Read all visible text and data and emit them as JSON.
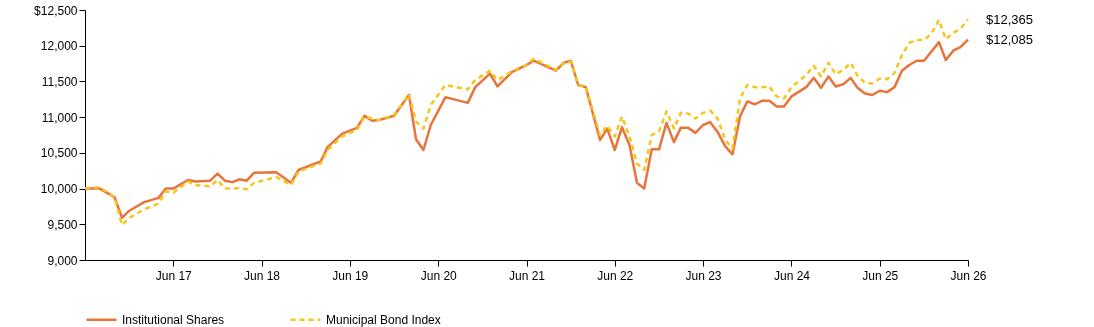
{
  "chart_data": {
    "type": "line",
    "x": [
      "2016-06",
      "2016-08",
      "2016-10",
      "2016-11",
      "2016-12",
      "2017-02",
      "2017-04",
      "2017-05",
      "2017-06",
      "2017-08",
      "2017-09",
      "2017-11",
      "2017-12",
      "2018-01",
      "2018-02",
      "2018-03",
      "2018-04",
      "2018-05",
      "2018-08",
      "2018-10",
      "2018-11",
      "2019-02",
      "2019-03",
      "2019-05",
      "2019-07",
      "2019-08",
      "2019-09",
      "2019-10",
      "2019-12",
      "2020-02",
      "2020-03",
      "2020-04",
      "2020-05",
      "2020-07",
      "2020-10",
      "2020-11",
      "2021-01",
      "2021-02",
      "2021-04",
      "2021-06",
      "2021-07",
      "2021-10",
      "2021-11",
      "2021-12",
      "2022-01",
      "2022-02",
      "2022-04",
      "2022-05",
      "2022-06",
      "2022-07",
      "2022-08",
      "2022-09",
      "2022-10",
      "2022-11",
      "2022-12",
      "2023-01",
      "2023-02",
      "2023-03",
      "2023-04",
      "2023-05",
      "2023-06",
      "2023-07",
      "2023-08",
      "2023-09",
      "2023-10",
      "2023-11",
      "2023-12",
      "2024-01",
      "2024-02",
      "2024-03",
      "2024-04",
      "2024-05",
      "2024-06",
      "2024-08",
      "2024-09",
      "2024-10",
      "2024-11",
      "2024-12",
      "2025-01",
      "2025-02",
      "2025-03",
      "2025-04",
      "2025-05",
      "2025-06",
      "2025-07",
      "2025-08",
      "2025-09",
      "2025-10",
      "2025-11",
      "2025-12",
      "2026-01",
      "2026-02",
      "2026-03",
      "2026-04",
      "2026-05",
      "2026-06"
    ],
    "series": [
      {
        "name": "Institutional Shares",
        "color": "#e8743b",
        "line_style": "solid",
        "values": [
          10000,
          10000,
          9880,
          9590,
          9690,
          9810,
          9870,
          10000,
          10000,
          10120,
          10100,
          10110,
          10210,
          10110,
          10090,
          10130,
          10110,
          10220,
          10230,
          10080,
          10260,
          10380,
          10580,
          10770,
          10850,
          11020,
          10950,
          10960,
          11020,
          11310,
          10690,
          10540,
          10890,
          11280,
          11200,
          11420,
          11610,
          11430,
          11630,
          11730,
          11790,
          11650,
          11760,
          11790,
          11450,
          11420,
          10680,
          10840,
          10540,
          10860,
          10610,
          10080,
          10000,
          10550,
          10550,
          10920,
          10650,
          10850,
          10850,
          10780,
          10890,
          10930,
          10790,
          10590,
          10480,
          11010,
          11220,
          11180,
          11230,
          11230,
          11150,
          11150,
          11290,
          11420,
          11550,
          11410,
          11570,
          11430,
          11460,
          11550,
          11410,
          11330,
          11310,
          11370,
          11350,
          11420,
          11650,
          11730,
          11790,
          11790,
          11920,
          12050,
          11800,
          11930,
          11980,
          12085
        ]
      },
      {
        "name": "Municipal Bond Index",
        "color": "#f5c518",
        "line_style": "dashed",
        "values": [
          10000,
          10020,
          9880,
          9490,
          9590,
          9710,
          9790,
          9960,
          9940,
          10100,
          10050,
          10030,
          10120,
          10000,
          10000,
          10010,
          9990,
          10080,
          10160,
          10050,
          10240,
          10350,
          10540,
          10730,
          10820,
          11010,
          10980,
          10960,
          11030,
          11320,
          10940,
          10840,
          11170,
          11450,
          11390,
          11520,
          11650,
          11520,
          11640,
          11730,
          11820,
          11660,
          11750,
          11780,
          11450,
          11430,
          10750,
          10880,
          10730,
          11010,
          10730,
          10350,
          10260,
          10750,
          10800,
          11080,
          10840,
          11060,
          11050,
          10980,
          11060,
          11090,
          10980,
          10680,
          10560,
          11260,
          11450,
          11420,
          11420,
          11430,
          11290,
          11260,
          11420,
          11590,
          11720,
          11570,
          11760,
          11600,
          11660,
          11760,
          11580,
          11480,
          11470,
          11540,
          11530,
          11620,
          11870,
          12040,
          12080,
          12080,
          12170,
          12360,
          12090,
          12180,
          12240,
          12365
        ]
      }
    ],
    "xlim": [
      "2016-06",
      "2026-06"
    ],
    "xticks": [
      {
        "value": "2017-06",
        "label": "Jun 17"
      },
      {
        "value": "2018-06",
        "label": "Jun 18"
      },
      {
        "value": "2019-06",
        "label": "Jun 19"
      },
      {
        "value": "2020-06",
        "label": "Jun 20"
      },
      {
        "value": "2021-06",
        "label": "Jun 21"
      },
      {
        "value": "2022-06",
        "label": "Jun 22"
      },
      {
        "value": "2023-06",
        "label": "Jun 23"
      },
      {
        "value": "2024-06",
        "label": "Jun 24"
      },
      {
        "value": "2025-06",
        "label": "Jun 25"
      },
      {
        "value": "2026-06",
        "label": "Jun 26"
      }
    ],
    "ylim": [
      9000,
      12500
    ],
    "yticks": [
      {
        "value": 9000,
        "label": "9,000"
      },
      {
        "value": 9500,
        "label": "9,500"
      },
      {
        "value": 10000,
        "label": "10,000"
      },
      {
        "value": 10500,
        "label": "10,500"
      },
      {
        "value": 11000,
        "label": "11,000"
      },
      {
        "value": 11500,
        "label": "11,500"
      },
      {
        "value": 12000,
        "label": "12,000"
      },
      {
        "value": 12500,
        "label": "$12,500"
      }
    ],
    "legend": "bottom",
    "annotations": [
      {
        "text": "$12,365",
        "x": "2026-06",
        "y": 12365
      },
      {
        "text": "$12,085",
        "x": "2026-06",
        "y": 12085
      }
    ]
  }
}
